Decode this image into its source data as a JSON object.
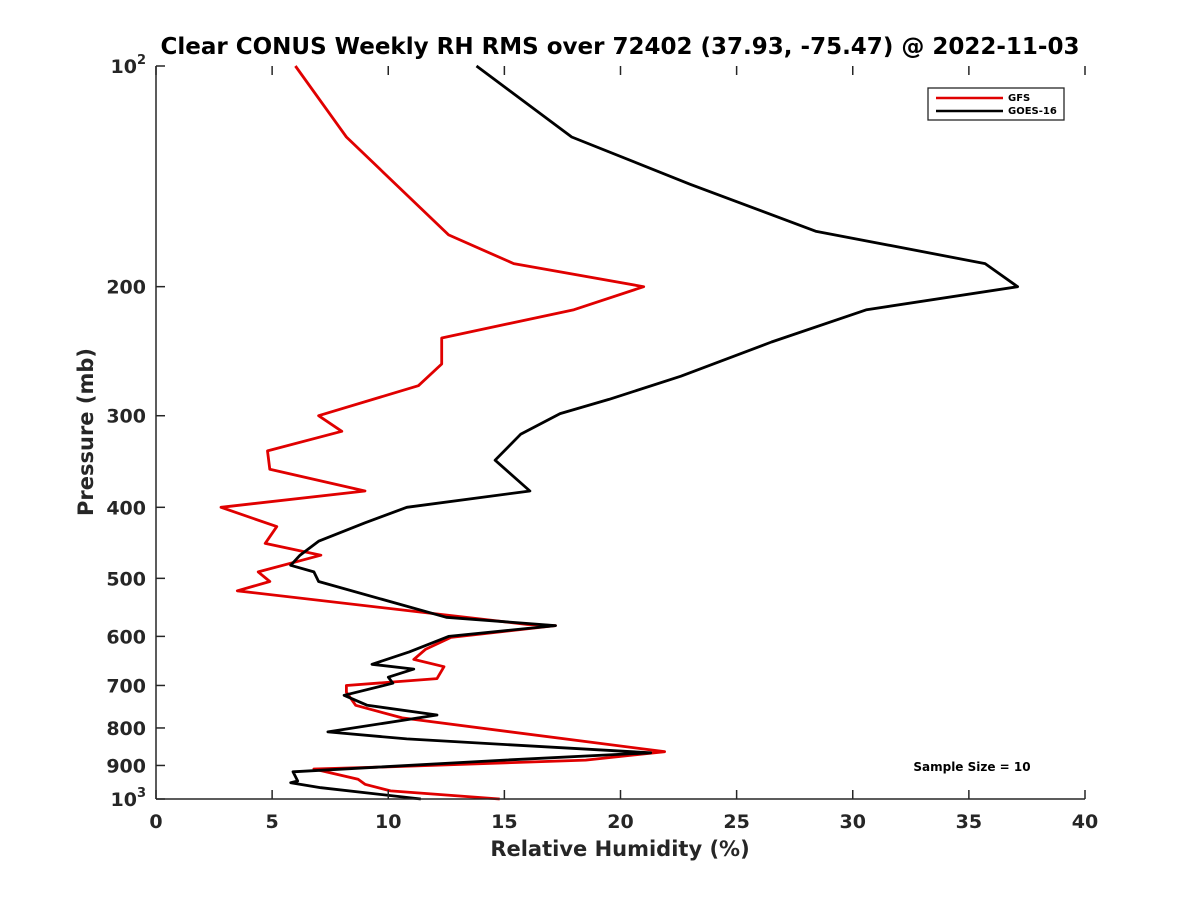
{
  "chart_data": {
    "type": "line",
    "title": "Clear CONUS Weekly RH RMS over 72402 (37.93, -75.47) @ 2022-11-03",
    "xlabel": "Relative Humidity (%)",
    "ylabel": "Pressure (mb)",
    "xlim": [
      0,
      40
    ],
    "ylim": [
      100,
      1000
    ],
    "yscale": "log",
    "yreversed": true,
    "x_ticks": [
      0,
      5,
      10,
      15,
      20,
      25,
      30,
      35,
      40
    ],
    "y_ticks": [
      {
        "value": 100,
        "label": "10",
        "exp": "2"
      },
      {
        "value": 200,
        "label": "200",
        "exp": ""
      },
      {
        "value": 300,
        "label": "300",
        "exp": ""
      },
      {
        "value": 400,
        "label": "400",
        "exp": ""
      },
      {
        "value": 500,
        "label": "500",
        "exp": ""
      },
      {
        "value": 600,
        "label": "600",
        "exp": ""
      },
      {
        "value": 700,
        "label": "700",
        "exp": ""
      },
      {
        "value": 800,
        "label": "800",
        "exp": ""
      },
      {
        "value": 900,
        "label": "900",
        "exp": ""
      },
      {
        "value": 1000,
        "label": "10",
        "exp": "3"
      }
    ],
    "legend_position": "top-right",
    "annotation": "Sample Size = 10",
    "series": [
      {
        "name": "GFS",
        "color": "#e00000",
        "points": [
          [
            6.0,
            100
          ],
          [
            8.2,
            125
          ],
          [
            12.6,
            170
          ],
          [
            15.4,
            186
          ],
          [
            21.0,
            200
          ],
          [
            18.0,
            215
          ],
          [
            12.3,
            235
          ],
          [
            12.3,
            255
          ],
          [
            11.3,
            273
          ],
          [
            7.0,
            300
          ],
          [
            8.0,
            315
          ],
          [
            4.8,
            335
          ],
          [
            4.9,
            355
          ],
          [
            9.0,
            380
          ],
          [
            2.8,
            400
          ],
          [
            5.2,
            425
          ],
          [
            4.7,
            448
          ],
          [
            7.1,
            465
          ],
          [
            4.4,
            490
          ],
          [
            4.9,
            505
          ],
          [
            3.5,
            520
          ],
          [
            16.0,
            578
          ],
          [
            17.2,
            580
          ],
          [
            12.7,
            602
          ],
          [
            11.6,
            625
          ],
          [
            11.1,
            645
          ],
          [
            12.4,
            660
          ],
          [
            12.1,
            685
          ],
          [
            8.2,
            700
          ],
          [
            8.2,
            715
          ],
          [
            8.6,
            745
          ],
          [
            10.6,
            775
          ],
          [
            21.9,
            862
          ],
          [
            18.5,
            885
          ],
          [
            9.5,
            905
          ],
          [
            6.8,
            910
          ],
          [
            8.7,
            940
          ],
          [
            9.0,
            955
          ],
          [
            10.1,
            975
          ],
          [
            14.8,
            1000
          ]
        ]
      },
      {
        "name": "GOES-16",
        "color": "#000000",
        "points": [
          [
            13.8,
            100
          ],
          [
            17.9,
            125
          ],
          [
            23.0,
            145
          ],
          [
            28.4,
            168
          ],
          [
            35.7,
            186
          ],
          [
            37.1,
            200
          ],
          [
            30.6,
            215
          ],
          [
            26.5,
            238
          ],
          [
            22.6,
            265
          ],
          [
            19.5,
            285
          ],
          [
            17.4,
            298
          ],
          [
            15.7,
            318
          ],
          [
            14.6,
            345
          ],
          [
            16.1,
            380
          ],
          [
            10.8,
            400
          ],
          [
            9.0,
            420
          ],
          [
            7.0,
            445
          ],
          [
            6.2,
            465
          ],
          [
            5.8,
            480
          ],
          [
            6.8,
            490
          ],
          [
            7.0,
            505
          ],
          [
            12.5,
            565
          ],
          [
            17.2,
            580
          ],
          [
            12.6,
            600
          ],
          [
            10.9,
            630
          ],
          [
            9.3,
            655
          ],
          [
            11.1,
            665
          ],
          [
            10.0,
            682
          ],
          [
            10.2,
            695
          ],
          [
            8.1,
            722
          ],
          [
            9.1,
            745
          ],
          [
            12.1,
            768
          ],
          [
            7.4,
            810
          ],
          [
            10.8,
            828
          ],
          [
            21.3,
            865
          ],
          [
            15.0,
            885
          ],
          [
            9.5,
            905
          ],
          [
            5.9,
            918
          ],
          [
            6.1,
            945
          ],
          [
            5.8,
            950
          ],
          [
            7.1,
            965
          ],
          [
            11.4,
            1000
          ]
        ]
      }
    ]
  }
}
